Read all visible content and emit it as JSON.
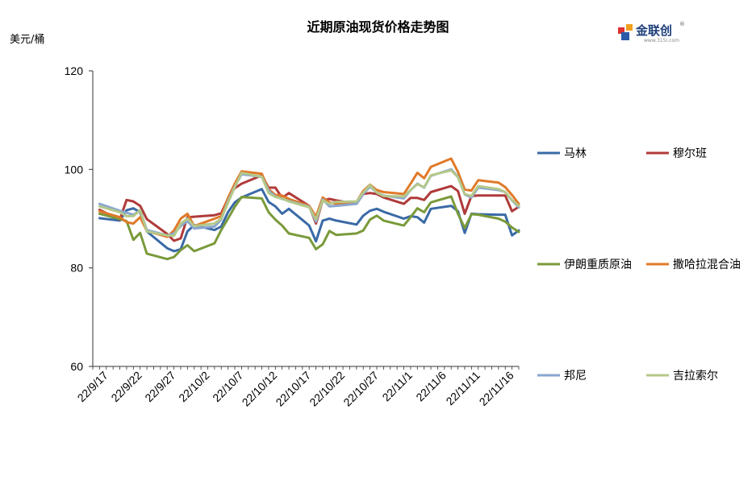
{
  "chart_data": {
    "type": "line",
    "title": "近期原油现货价格走势图",
    "ylabel": "美元/桶",
    "ylim": [
      60,
      120
    ],
    "yticks": [
      60,
      80,
      100,
      120
    ],
    "x_tick_labels": [
      "22/9/17",
      "22/9/22",
      "22/9/27",
      "22/10/2",
      "22/10/7",
      "22/10/12",
      "22/10/17",
      "22/10/22",
      "22/10/27",
      "22/11/1",
      "22/11/6",
      "22/11/11",
      "22/11/16"
    ],
    "legend_position": "right",
    "x": [
      "2022-09-16",
      "2022-09-19",
      "2022-09-20",
      "2022-09-21",
      "2022-09-22",
      "2022-09-23",
      "2022-09-26",
      "2022-09-27",
      "2022-09-28",
      "2022-09-29",
      "2022-09-30",
      "2022-10-03",
      "2022-10-04",
      "2022-10-05",
      "2022-10-06",
      "2022-10-07",
      "2022-10-10",
      "2022-10-11",
      "2022-10-12",
      "2022-10-13",
      "2022-10-14",
      "2022-10-17",
      "2022-10-18",
      "2022-10-19",
      "2022-10-20",
      "2022-10-21",
      "2022-10-24",
      "2022-10-25",
      "2022-10-26",
      "2022-10-27",
      "2022-10-28",
      "2022-10-31",
      "2022-11-01",
      "2022-11-02",
      "2022-11-03",
      "2022-11-04",
      "2022-11-07",
      "2022-11-08",
      "2022-11-09",
      "2022-11-10",
      "2022-11-11",
      "2022-11-14",
      "2022-11-15",
      "2022-11-16",
      "2022-11-17"
    ],
    "series": [
      {
        "name": "马林",
        "color": "#3a6aa6",
        "values": [
          90.1,
          89.6,
          91.7,
          92.1,
          91.3,
          87.4,
          84.0,
          83.4,
          83.8,
          87.4,
          88.7,
          87.7,
          88.4,
          91.3,
          93.3,
          94.3,
          96.0,
          93.4,
          92.5,
          91.0,
          92.0,
          88.6,
          85.4,
          89.6,
          90.0,
          89.6,
          88.8,
          90.6,
          91.6,
          92.0,
          91.4,
          90.0,
          90.5,
          90.3,
          89.2,
          92.0,
          92.6,
          91.5,
          87.1,
          91.0,
          90.9,
          90.8,
          90.8,
          86.6,
          87.6
        ]
      },
      {
        "name": "穆尔班",
        "color": "#b03a3a",
        "values": [
          91.8,
          89.8,
          93.8,
          93.5,
          92.6,
          89.9,
          86.9,
          85.5,
          86.0,
          90.3,
          90.4,
          90.7,
          91.1,
          94.1,
          96.2,
          97.1,
          98.8,
          96.3,
          96.3,
          94.2,
          95.2,
          92.6,
          89.0,
          93.7,
          94.0,
          93.7,
          93.0,
          95.0,
          95.2,
          95.0,
          94.3,
          93.0,
          94.2,
          94.2,
          93.8,
          95.4,
          96.6,
          95.6,
          91.0,
          94.6,
          94.7,
          94.7,
          94.7,
          91.5,
          92.4
        ]
      },
      {
        "name": "伊朗重质原油",
        "color": "#7a9a3a",
        "values": [
          91.0,
          89.9,
          89.5,
          85.7,
          87.1,
          82.9,
          81.8,
          82.2,
          83.6,
          84.6,
          83.4,
          85.0,
          87.7,
          90.0,
          92.4,
          94.4,
          94.1,
          91.3,
          89.8,
          88.6,
          87.0,
          86.1,
          83.8,
          84.8,
          87.5,
          86.7,
          87.0,
          87.6,
          89.8,
          90.6,
          89.6,
          88.6,
          90.3,
          92.1,
          91.3,
          93.3,
          94.5,
          91.0,
          88.1,
          90.9,
          90.8,
          90.0,
          89.4,
          88.2,
          87.3
        ]
      },
      {
        "name": "撒哈拉混合油",
        "color": "#e07a2a",
        "values": [
          91.5,
          90.3,
          89.3,
          89.0,
          90.3,
          87.5,
          86.3,
          87.6,
          90.0,
          91.0,
          88.5,
          90.0,
          90.5,
          94.2,
          97.1,
          99.6,
          99.1,
          96.0,
          94.8,
          94.7,
          94.0,
          92.6,
          90.4,
          94.3,
          93.3,
          93.0,
          93.4,
          95.6,
          96.9,
          95.8,
          95.4,
          95.0,
          97.1,
          99.3,
          98.2,
          100.5,
          102.2,
          99.5,
          95.9,
          95.7,
          97.8,
          97.3,
          96.4,
          94.8,
          93.0
        ]
      },
      {
        "name": "邦尼",
        "color": "#8aa6d0",
        "values": [
          93.0,
          91.6,
          91.2,
          90.8,
          91.7,
          87.7,
          86.6,
          87.0,
          88.5,
          89.5,
          88.0,
          88.4,
          89.8,
          93.5,
          96.5,
          99.0,
          98.5,
          95.7,
          94.5,
          94.0,
          93.6,
          92.4,
          89.4,
          93.9,
          92.5,
          92.6,
          93.0,
          95.0,
          96.5,
          95.3,
          94.7,
          94.1,
          95.8,
          97.1,
          96.3,
          98.7,
          100.0,
          98.5,
          94.9,
          94.3,
          96.3,
          95.8,
          95.4,
          93.7,
          92.3
        ]
      },
      {
        "name": "吉拉索尔",
        "color": "#b4c88a",
        "values": [
          92.5,
          91.3,
          90.5,
          90.5,
          91.7,
          87.4,
          86.6,
          86.5,
          89.0,
          90.0,
          88.5,
          89.0,
          90.0,
          93.2,
          96.4,
          99.3,
          98.5,
          95.2,
          94.4,
          94.1,
          93.5,
          92.3,
          89.8,
          93.7,
          93.0,
          93.4,
          93.5,
          95.3,
          96.8,
          95.3,
          94.6,
          94.5,
          95.8,
          97.0,
          96.4,
          98.8,
          99.8,
          98.4,
          95.0,
          94.6,
          96.6,
          96.0,
          95.4,
          93.8,
          92.6
        ]
      }
    ]
  },
  "logo": {
    "text": "金联创",
    "subtext": "www.315i.com",
    "mark": "®"
  }
}
